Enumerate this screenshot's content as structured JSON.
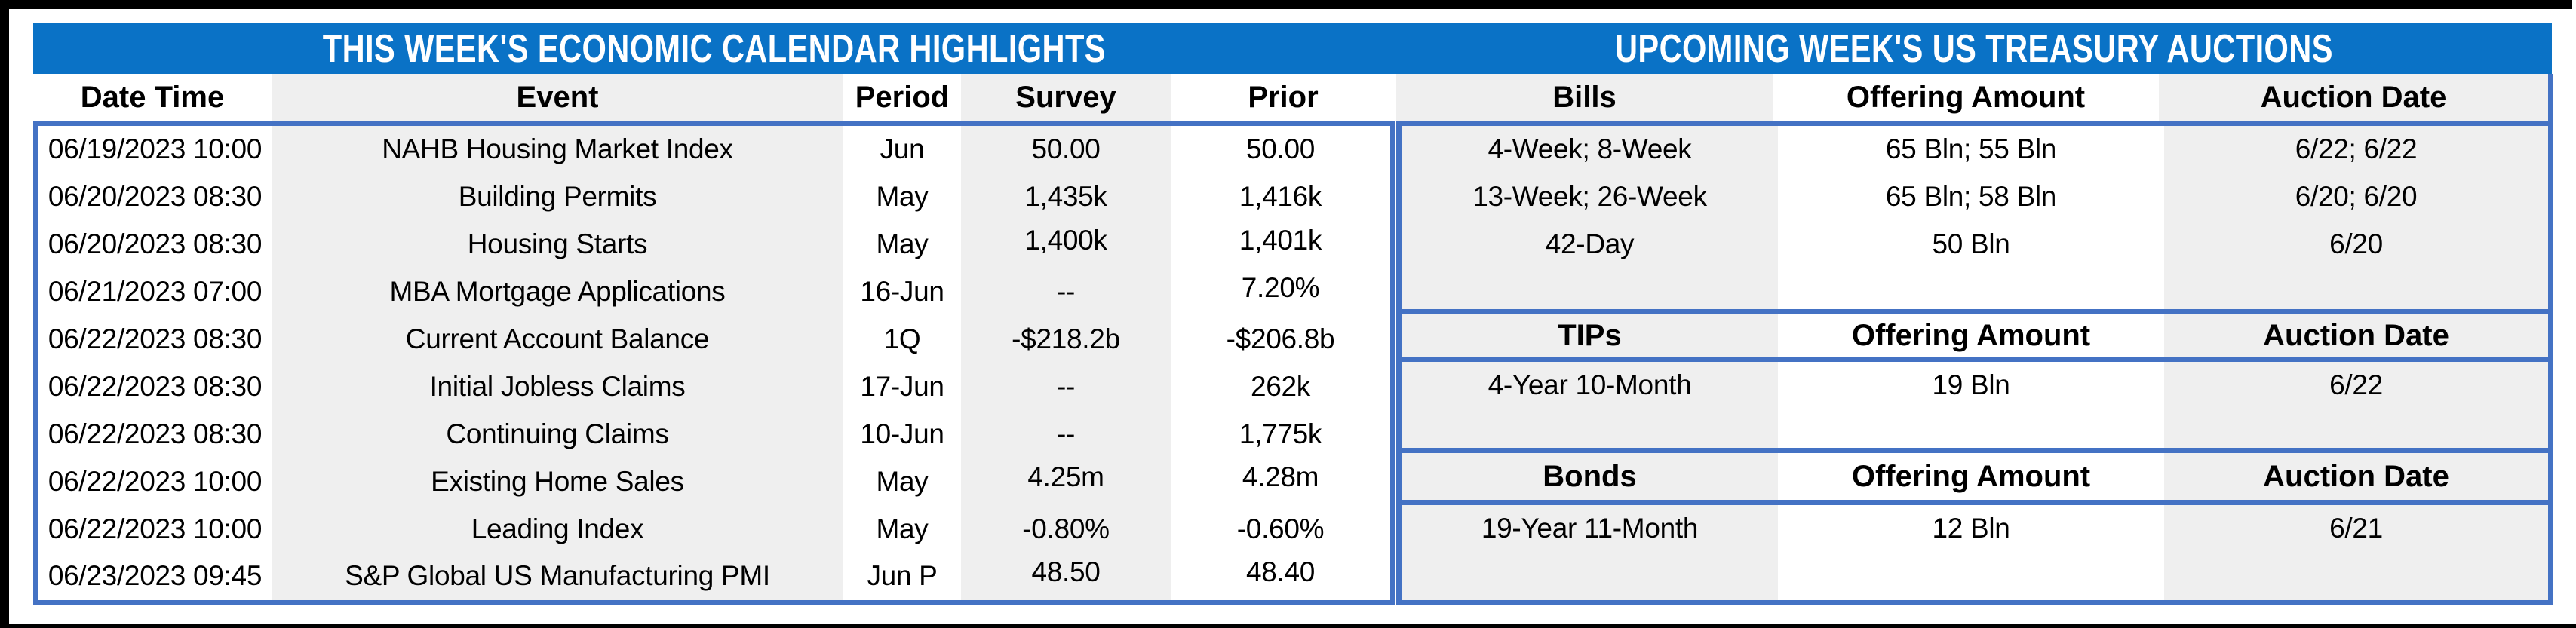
{
  "titles": {
    "economic_calendar": "THIS WEEK'S ECONOMIC CALENDAR HIGHLIGHTS",
    "treasury_auctions": "UPCOMING WEEK'S US TREASURY AUCTIONS"
  },
  "economic_calendar": {
    "columns": [
      "Date Time",
      "Event",
      "Period",
      "Survey",
      "Prior"
    ],
    "rows": [
      [
        "06/19/2023 10:00",
        "NAHB Housing Market Index",
        "Jun",
        "50.00",
        "50.00"
      ],
      [
        "06/20/2023 08:30",
        "Building Permits",
        "May",
        "1,435k",
        "1,416k"
      ],
      [
        "06/20/2023 08:30",
        "Housing Starts",
        "May",
        "1,400k",
        "1,401k"
      ],
      [
        "06/21/2023 07:00",
        "MBA Mortgage Applications",
        "16-Jun",
        "--",
        "7.20%"
      ],
      [
        "06/22/2023 08:30",
        "Current Account Balance",
        "1Q",
        "-$218.2b",
        "-$206.8b"
      ],
      [
        "06/22/2023 08:30",
        "Initial Jobless Claims",
        "17-Jun",
        "--",
        "262k"
      ],
      [
        "06/22/2023 08:30",
        "Continuing Claims",
        "10-Jun",
        "--",
        "1,775k"
      ],
      [
        "06/22/2023 10:00",
        "Existing Home Sales",
        "May",
        "4.25m",
        "4.28m"
      ],
      [
        "06/22/2023 10:00",
        "Leading Index",
        "May",
        "-0.80%",
        "-0.60%"
      ],
      [
        "06/23/2023 09:45",
        "S&P Global US Manufacturing PMI",
        "Jun P",
        "48.50",
        "48.40"
      ]
    ]
  },
  "treasury_auctions": {
    "sections": [
      {
        "name": "Bills",
        "columns": [
          "Bills",
          "Offering Amount",
          "Auction Date"
        ],
        "rows": [
          [
            "4-Week; 8-Week",
            "65 Bln; 55 Bln",
            "6/22; 6/22"
          ],
          [
            "13-Week; 26-Week",
            "65 Bln; 58 Bln",
            "6/20; 6/20"
          ],
          [
            "42-Day",
            "50 Bln",
            "6/20"
          ]
        ]
      },
      {
        "name": "TIPs",
        "columns": [
          "TIPs",
          "Offering Amount",
          "Auction Date"
        ],
        "rows": [
          [
            "4-Year 10-Month",
            "19 Bln",
            "6/22"
          ]
        ]
      },
      {
        "name": "Bonds",
        "columns": [
          "Bonds",
          "Offering Amount",
          "Auction Date"
        ],
        "rows": [
          [
            "19-Year 11-Month",
            "12 Bln",
            "6/21"
          ]
        ]
      }
    ]
  },
  "colors": {
    "header_band_blue": "#0a72c6",
    "table_border_blue": "#4472c4",
    "stripe_gray": "#efefef",
    "frame_black": "#000000"
  }
}
